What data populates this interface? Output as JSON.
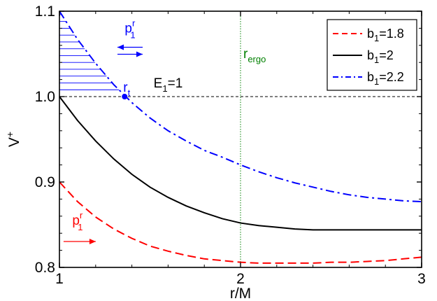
{
  "chart_data": {
    "type": "line",
    "xlabel": "r/M",
    "ylabel": "V",
    "ylabel_sup": "+",
    "xlim": [
      1,
      3
    ],
    "ylim": [
      0.8,
      1.1
    ],
    "xticks": [
      "1",
      "2",
      "3"
    ],
    "yticks": [
      "0.8",
      "0.9",
      "1.0",
      "1.1"
    ],
    "grid": false,
    "legend_position": "top-right",
    "series": [
      {
        "name": "b1=1.8",
        "legend_main": "b",
        "legend_sub": "1",
        "legend_rest": "=1.8",
        "color": "#ff0000",
        "style": "dashed",
        "x": [
          1.0,
          1.1,
          1.2,
          1.3,
          1.4,
          1.5,
          1.6,
          1.7,
          1.8,
          1.9,
          2.0,
          2.1,
          2.2,
          2.3,
          2.4,
          2.5,
          2.6,
          2.7,
          2.8,
          2.9,
          3.0
        ],
        "y": [
          0.9,
          0.877,
          0.859,
          0.845,
          0.834,
          0.825,
          0.819,
          0.814,
          0.81,
          0.808,
          0.806,
          0.805,
          0.805,
          0.805,
          0.805,
          0.806,
          0.806,
          0.807,
          0.808,
          0.81,
          0.812
        ]
      },
      {
        "name": "b1=2",
        "legend_main": "b",
        "legend_sub": "1",
        "legend_rest": "=2",
        "color": "#000000",
        "style": "solid",
        "x": [
          1.0,
          1.1,
          1.2,
          1.3,
          1.4,
          1.5,
          1.6,
          1.7,
          1.8,
          1.9,
          2.0,
          2.1,
          2.2,
          2.3,
          2.4,
          2.5,
          2.6,
          2.7,
          2.8,
          2.9,
          3.0
        ],
        "y": [
          1.0,
          0.972,
          0.948,
          0.927,
          0.909,
          0.894,
          0.882,
          0.872,
          0.864,
          0.857,
          0.852,
          0.849,
          0.847,
          0.845,
          0.844,
          0.844,
          0.844,
          0.844,
          0.844,
          0.844,
          0.844
        ]
      },
      {
        "name": "b1=2.2",
        "legend_main": "b",
        "legend_sub": "1",
        "legend_rest": "=2.2",
        "color": "#0000ff",
        "style": "dashdot",
        "x": [
          1.0,
          1.1,
          1.2,
          1.3,
          1.4,
          1.5,
          1.6,
          1.7,
          1.8,
          1.9,
          2.0,
          2.1,
          2.2,
          2.3,
          2.4,
          2.5,
          2.6,
          2.7,
          2.8,
          2.9,
          3.0
        ],
        "y": [
          1.1,
          1.067,
          1.039,
          1.014,
          0.993,
          0.975,
          0.96,
          0.948,
          0.937,
          0.929,
          0.92,
          0.912,
          0.905,
          0.899,
          0.894,
          0.889,
          0.885,
          0.882,
          0.88,
          0.878,
          0.877
        ]
      }
    ],
    "reference_lines": [
      {
        "orientation": "horizontal",
        "value": 1.0,
        "color": "#000000",
        "style": "dashed",
        "label": "E",
        "label_sub": "1",
        "label_rest": "=1"
      },
      {
        "orientation": "vertical",
        "value": 2.0,
        "color": "#008000",
        "style": "dotted",
        "label": "r",
        "label_sub": "ergo",
        "label_rest": ""
      }
    ],
    "hatched_region": {
      "x_from": 1.0,
      "x_to": 1.36,
      "y_floor": 1.0,
      "bounded_by_series": "b1=2.2",
      "color": "#0000ff"
    },
    "turning_point": {
      "x": 1.36,
      "y": 1.0,
      "color": "#0000ff",
      "label": "r",
      "label_sub": "t"
    },
    "annotations": [
      {
        "label": "p",
        "label_sup": "r",
        "label_sub": "1",
        "color": "#0000ff",
        "arrows": "both",
        "x": 1.39,
        "y": 1.075
      },
      {
        "label": "p",
        "label_sup": "r",
        "label_sub": "1",
        "color": "#ff0000",
        "arrows": "right",
        "x": 1.1,
        "y": 0.85
      }
    ]
  }
}
